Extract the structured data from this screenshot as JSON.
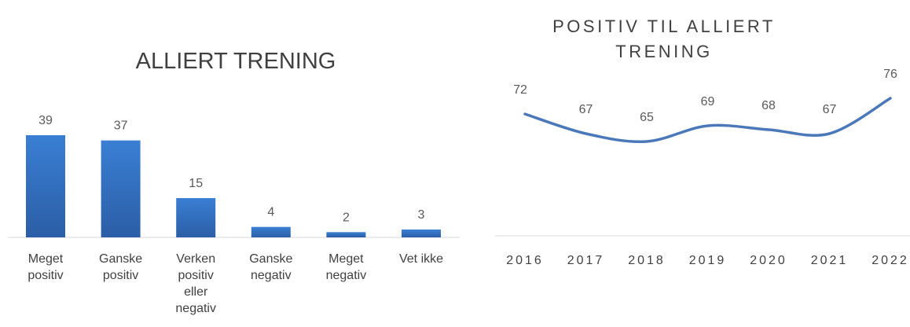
{
  "chart_data": [
    {
      "type": "bar",
      "title": "ALLIERT TRENING",
      "categories": [
        "Meget positiv",
        "Ganske positiv",
        "Verken positiv eller negativ",
        "Ganske negativ",
        "Meget negativ",
        "Vet ikke"
      ],
      "values": [
        39,
        37,
        15,
        4,
        2,
        3
      ],
      "color": "#3373c4"
    },
    {
      "type": "line",
      "title": "POSITIV TIL ALLIERT TRENING",
      "categories": [
        "2016",
        "2017",
        "2018",
        "2019",
        "2020",
        "2021",
        "2022"
      ],
      "values": [
        72,
        67,
        65,
        69,
        68,
        67,
        76
      ],
      "color": "#4a78b8"
    }
  ]
}
